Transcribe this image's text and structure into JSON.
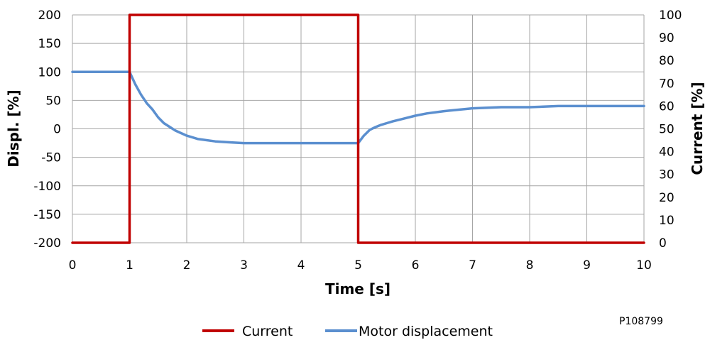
{
  "chart_data": {
    "type": "line",
    "xlabel": "Time [s]",
    "ylabel_left": "Displ. [%]",
    "ylabel_right": "Current  [%]",
    "xlim": [
      0,
      10
    ],
    "ylim_left": [
      -200,
      200
    ],
    "ylim_right": [
      0,
      100
    ],
    "x_ticks": [
      "0",
      "1",
      "2",
      "3",
      "4",
      "5",
      "6",
      "7",
      "8",
      "9",
      "10"
    ],
    "y_left_ticks": [
      "-200",
      "-150",
      "-100",
      "-50",
      "0",
      "50",
      "100",
      "150",
      "200"
    ],
    "y_right_ticks": [
      "0",
      "10",
      "20",
      "30",
      "40",
      "50",
      "60",
      "70",
      "80",
      "90",
      "100"
    ],
    "grid": true,
    "legend_position": "bottom",
    "reference": "P108799",
    "series": [
      {
        "name": "Current",
        "axis": "right",
        "color": "#c00000",
        "x": [
          0,
          1,
          1,
          5,
          5,
          10
        ],
        "y": [
          0,
          0,
          100,
          100,
          0,
          0
        ]
      },
      {
        "name": "Motor displacement",
        "axis": "left",
        "color": "#5b8fcf",
        "x": [
          0,
          1,
          1.1,
          1.2,
          1.3,
          1.4,
          1.5,
          1.6,
          1.8,
          2.0,
          2.2,
          2.5,
          2.8,
          3.0,
          3.5,
          4.0,
          4.5,
          5.0,
          5.1,
          5.2,
          5.3,
          5.4,
          5.5,
          5.6,
          5.8,
          6.0,
          6.2,
          6.5,
          7.0,
          7.5,
          8.0,
          8.5,
          9.0,
          10
        ],
        "y": [
          100,
          100,
          78,
          60,
          45,
          34,
          20,
          10,
          -3,
          -12,
          -18,
          -22,
          -24,
          -25,
          -25,
          -25,
          -25,
          -25,
          -12,
          -2,
          3,
          7,
          10,
          13,
          18,
          23,
          27,
          31,
          36,
          38,
          38,
          40,
          40,
          40
        ]
      }
    ]
  }
}
